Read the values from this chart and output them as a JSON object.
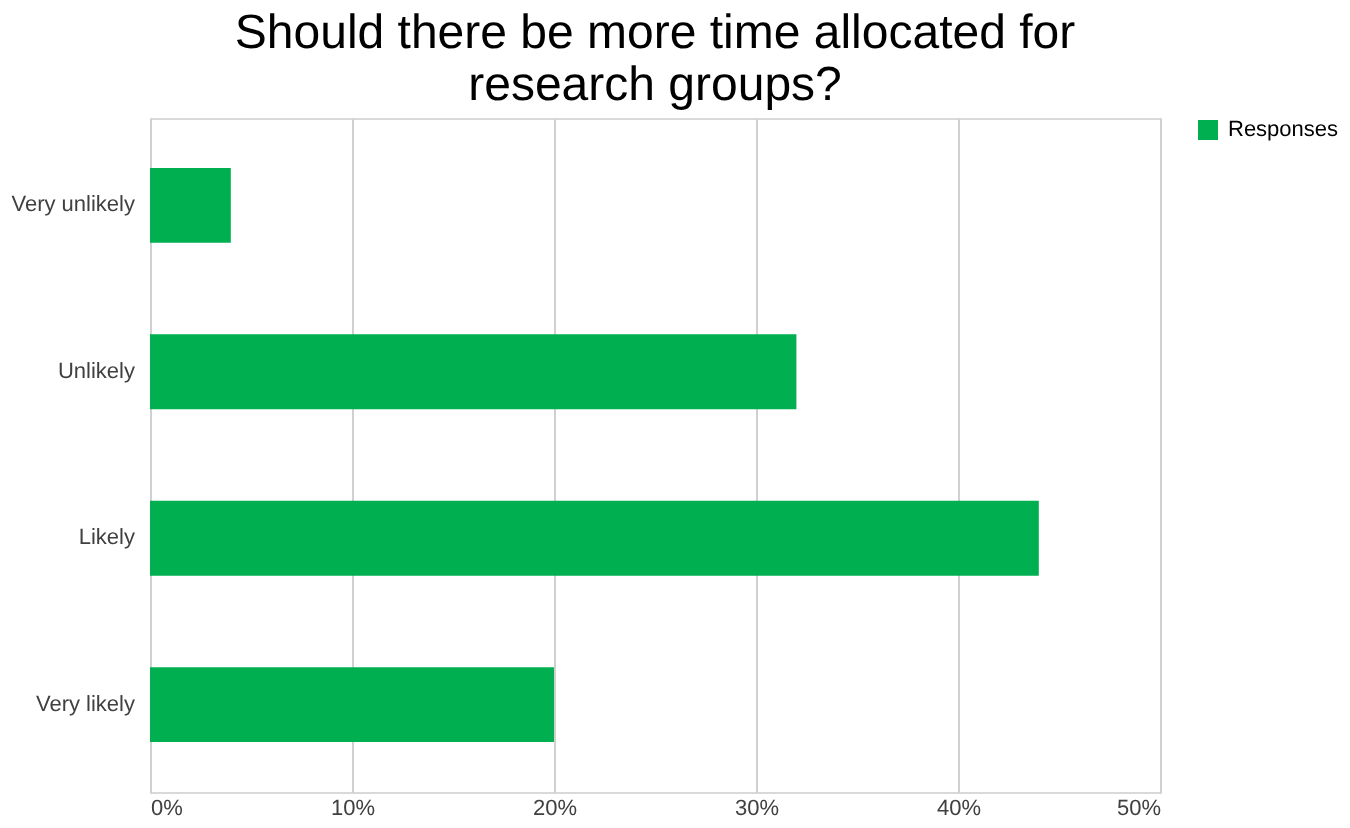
{
  "chart_data": {
    "type": "bar",
    "orientation": "horizontal",
    "title": "Should there be more time allocated for\nresearch groups?",
    "categories": [
      "Very unlikely",
      "Unlikely",
      "Likely",
      "Very likely"
    ],
    "series": [
      {
        "name": "Responses",
        "color": "#00b050",
        "values": [
          4,
          32,
          44,
          20
        ]
      }
    ],
    "xlim": [
      0,
      50
    ],
    "xticks": [
      {
        "value": 0,
        "label": "0%"
      },
      {
        "value": 10,
        "label": "10%"
      },
      {
        "value": 20,
        "label": "20%"
      },
      {
        "value": 30,
        "label": "30%"
      },
      {
        "value": 40,
        "label": "40%"
      },
      {
        "value": 50,
        "label": "50%"
      }
    ],
    "grid": "x",
    "legend": "right"
  }
}
